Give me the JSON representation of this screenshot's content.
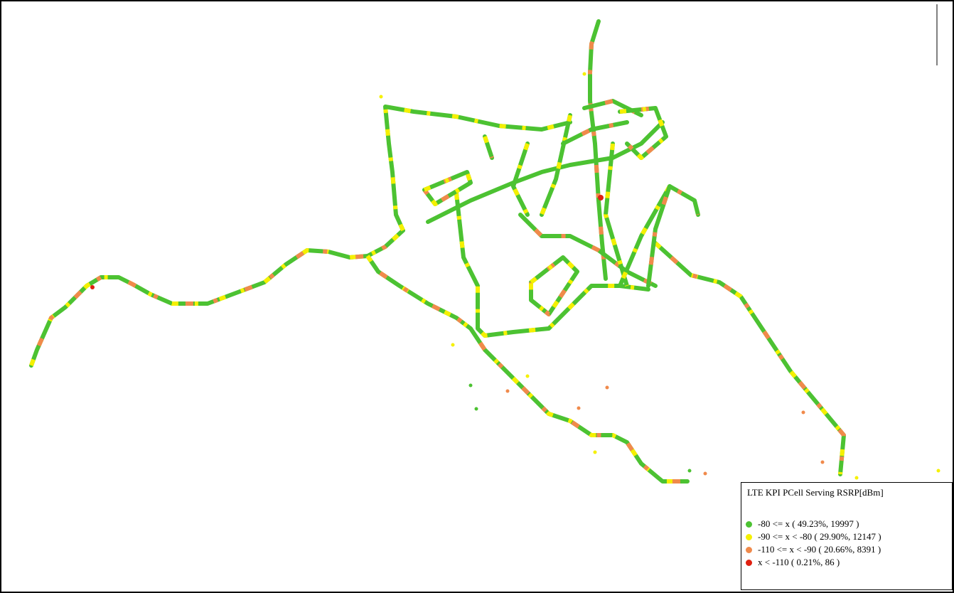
{
  "legend": {
    "title": "LTE KPI PCell Serving RSRP[dBm]",
    "items": [
      {
        "label": "-80 <= x ( 49.23%, 19997 )",
        "color": "#4cc232"
      },
      {
        "label": "-90 <= x < -80 ( 29.90%, 12147 )",
        "color": "#f5f000"
      },
      {
        "label": "-110 <= x < -90 ( 20.66%, 8391 )",
        "color": "#f08a4b"
      },
      {
        "label": "x < -110 ( 0.21%, 86 )",
        "color": "#e02010"
      }
    ]
  }
}
